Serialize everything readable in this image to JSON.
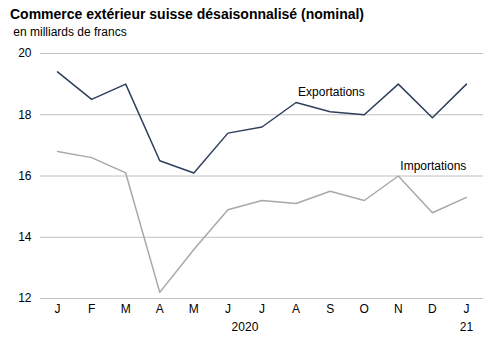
{
  "chart_data": {
    "type": "line",
    "title": "Commerce extérieur suisse désaisonnalisé (nominal)",
    "subtitle": " en milliards de francs",
    "categories": [
      "J",
      "F",
      "M",
      "A",
      "M",
      "J",
      "J",
      "A",
      "S",
      "O",
      "N",
      "D",
      "J"
    ],
    "series": [
      {
        "name": "Exportations",
        "color": "#2e3f5c",
        "values": [
          19.4,
          18.5,
          19.0,
          16.5,
          16.1,
          17.4,
          17.6,
          18.4,
          18.1,
          18.0,
          19.0,
          17.9,
          19.0
        ]
      },
      {
        "name": "Importations",
        "color": "#a8a8a8",
        "values": [
          16.8,
          16.6,
          16.1,
          12.2,
          13.6,
          14.9,
          15.2,
          15.1,
          15.5,
          15.2,
          16.0,
          14.8,
          15.3
        ]
      }
    ],
    "ylim": [
      12,
      20
    ],
    "yticks": [
      12,
      14,
      16,
      18,
      20
    ],
    "grid": true,
    "annotations": [
      "2020",
      "21"
    ]
  }
}
